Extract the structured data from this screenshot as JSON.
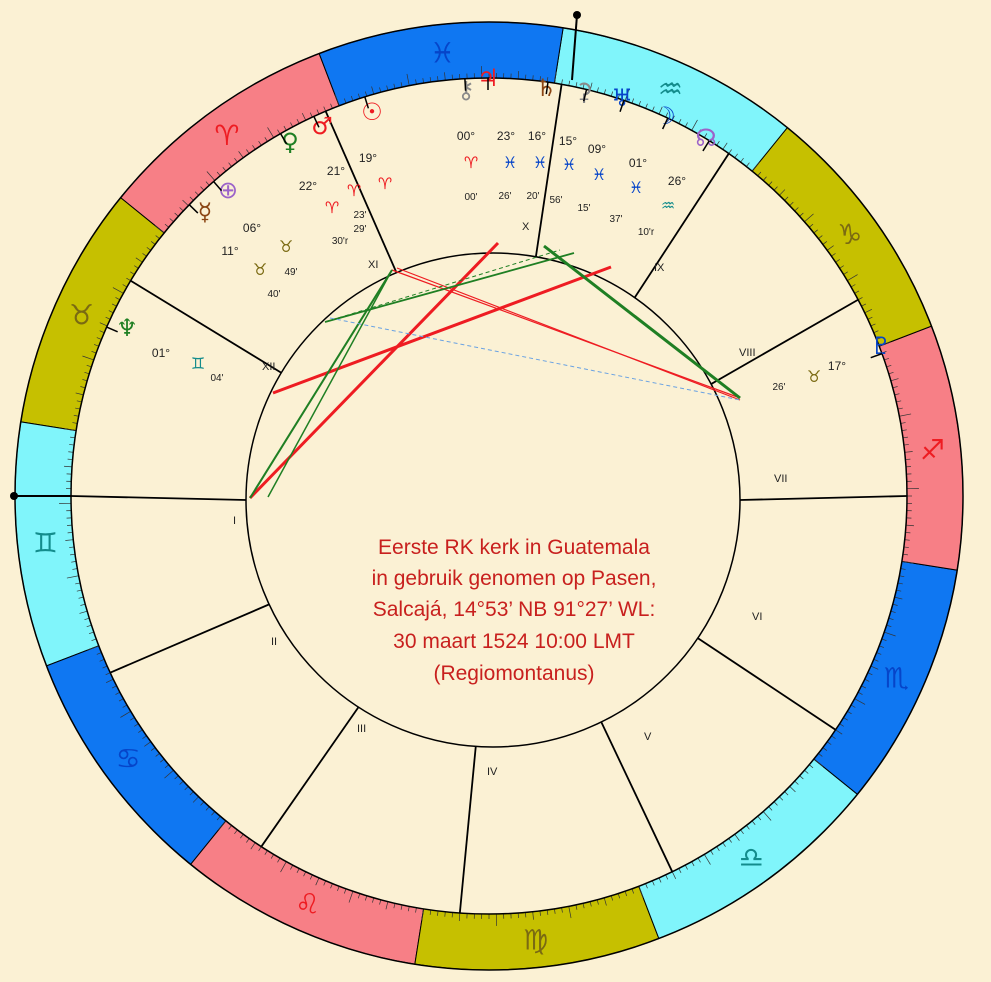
{
  "title_lines": [
    "Eerste RK kerk in Guatemala",
    "in gebruik genomen op Pasen,",
    "Salcajá, 14°53’ NB  91°27’ WL:",
    "30 maart 1524 10:00 LMT",
    "(Regiomontanus)"
  ],
  "colors": {
    "background": "#fbf1d4",
    "fire": "#f77f86",
    "earth": "#c6c000",
    "air": "#80f5fb",
    "water": "#0f77f2",
    "aspect_red": "#ee1c22",
    "aspect_green": "#1f7f23",
    "aspect_blue": "#6aa2e2"
  },
  "signs": [
    {
      "name": "Aries",
      "glyph": "♈",
      "color": "#ee1c22"
    },
    {
      "name": "Taurus",
      "glyph": "♉",
      "color": "#7a6a12"
    },
    {
      "name": "Gemini",
      "glyph": "♊",
      "color": "#138c8c"
    },
    {
      "name": "Cancer",
      "glyph": "♋",
      "color": "#0645c9"
    },
    {
      "name": "Leo",
      "glyph": "♌",
      "color": "#ee1c22"
    },
    {
      "name": "Virgo",
      "glyph": "♍",
      "color": "#7a6a12"
    },
    {
      "name": "Libra",
      "glyph": "♎",
      "color": "#138c8c"
    },
    {
      "name": "Scorpio",
      "glyph": "♏",
      "color": "#0645c9"
    },
    {
      "name": "Sagittarius",
      "glyph": "♐",
      "color": "#ee1c22"
    },
    {
      "name": "Capricorn",
      "glyph": "♑",
      "color": "#7a6a12"
    },
    {
      "name": "Aquarius",
      "glyph": "♒",
      "color": "#138c8c"
    },
    {
      "name": "Pisces",
      "glyph": "♓",
      "color": "#0645c9"
    }
  ],
  "houses": [
    "I",
    "II",
    "III",
    "IV",
    "V",
    "VI",
    "VII",
    "VIII",
    "IX",
    "X",
    "XI",
    "XII"
  ],
  "planets": [
    {
      "name": "Chiron",
      "glyph": "⚷",
      "color": "#8a8a8a",
      "deg": "00°",
      "sign_glyph": "♈",
      "sign_color": "#ee1c22",
      "min": "00'"
    },
    {
      "name": "Jupiter",
      "glyph": "♃",
      "color": "#ee1c22",
      "deg": "23°",
      "sign_glyph": "♓",
      "sign_color": "#0645c9",
      "min": "26'"
    },
    {
      "name": "Saturn",
      "glyph": "♄",
      "color": "#8b4513",
      "deg": "16°",
      "sign_glyph": "♓",
      "sign_color": "#0645c9",
      "min": "20'"
    },
    {
      "name": "Ceres",
      "glyph": "⚳",
      "color": "#8a8a8a",
      "deg": "15°",
      "sign_glyph": "♓",
      "sign_color": "#0645c9",
      "min": "56'"
    },
    {
      "name": "Uranus",
      "glyph": "♅",
      "color": "#0645c9",
      "deg": "09°",
      "sign_glyph": "♓",
      "sign_color": "#0645c9",
      "min": "15'"
    },
    {
      "name": "Moon",
      "glyph": "☽",
      "color": "#0645c9",
      "deg": "01°",
      "sign_glyph": "♓",
      "sign_color": "#0645c9",
      "min": "37'"
    },
    {
      "name": "North Node",
      "glyph": "☊",
      "color": "#9c63c9",
      "deg": "26°",
      "sign_glyph": "♒",
      "sign_color": "#138c8c",
      "min": "10'r"
    },
    {
      "name": "Sun",
      "glyph": "☉",
      "color": "#ee1c22",
      "deg": "19°",
      "sign_glyph": "♈",
      "sign_color": "#ee1c22",
      "min": "23'"
    },
    {
      "name": "Mars",
      "glyph": "♂",
      "color": "#ee1c22",
      "deg": "21°",
      "sign_glyph": "♈",
      "sign_color": "#ee1c22",
      "min": "29'"
    },
    {
      "name": "Venus",
      "glyph": "♀",
      "color": "#1f7f23",
      "deg": "22°",
      "sign_glyph": "♈",
      "sign_color": "#ee1c22",
      "min": "30'r"
    },
    {
      "name": "Part of Fortune",
      "glyph": "⊕",
      "color": "#9c63c9",
      "deg": "06°",
      "sign_glyph": "♉",
      "sign_color": "#7a6a12",
      "min": "49'"
    },
    {
      "name": "Mercury",
      "glyph": "☿",
      "color": "#8b4513",
      "deg": "11°",
      "sign_glyph": "♉",
      "sign_color": "#7a6a12",
      "min": "40'"
    },
    {
      "name": "Neptune",
      "glyph": "♆",
      "color": "#1f7f23",
      "deg": "01°",
      "sign_glyph": "♊",
      "sign_color": "#138c8c",
      "min": "04'"
    },
    {
      "name": "Pluto",
      "glyph": "♇",
      "color": "#0645c9",
      "deg": "17°",
      "sign_glyph": "♉",
      "sign_color": "#7a6a12",
      "min": "26'"
    }
  ]
}
